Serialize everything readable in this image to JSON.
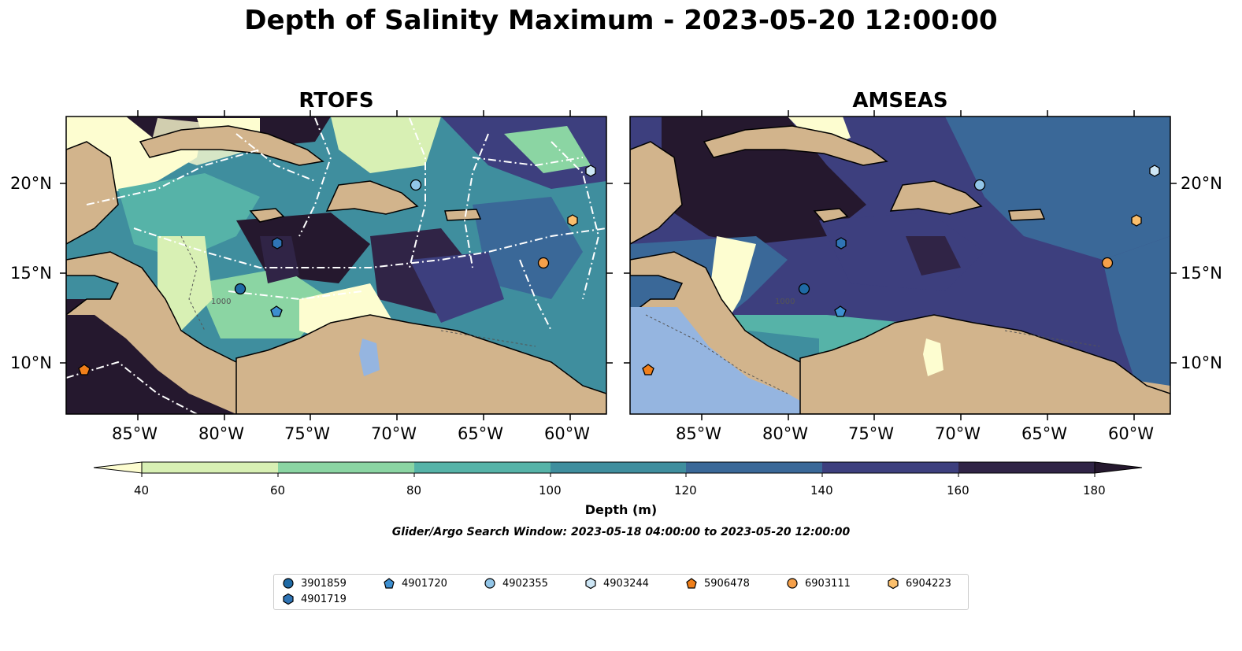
{
  "title": "Depth of Salinity Maximum - 2023-05-20 12:00:00",
  "panels": [
    {
      "title": "RTOFS"
    },
    {
      "title": "AMSEAS"
    }
  ],
  "axes": {
    "lon_ticks": [
      "85°W",
      "80°W",
      "75°W",
      "70°W",
      "65°W",
      "60°W"
    ],
    "lat_ticks": [
      "20°N",
      "15°N",
      "10°N"
    ]
  },
  "colorbar": {
    "label": "Depth (m)",
    "ticks": [
      "40",
      "60",
      "80",
      "100",
      "120",
      "140",
      "160",
      "180"
    ],
    "colors": [
      "#d8f0b4",
      "#8bd5a3",
      "#56b3a8",
      "#3f8e9e",
      "#3a6898",
      "#3d3f7e",
      "#302446"
    ],
    "extend_low": "#fdfdd0",
    "extend_high": "#25182e"
  },
  "search_window": "Glider/Argo Search Window: 2023-05-18 04:00:00 to 2023-05-20 12:00:00",
  "contour_labels": [
    "1000"
  ],
  "legend": [
    {
      "id": "3901859",
      "marker": "circle",
      "color": "#1f6aa5"
    },
    {
      "id": "4901720",
      "marker": "pentagon",
      "color": "#3d8fd0"
    },
    {
      "id": "4902355",
      "marker": "circle",
      "color": "#93c6e8"
    },
    {
      "id": "4903244",
      "marker": "hexagon",
      "color": "#cde6f5"
    },
    {
      "id": "5906478",
      "marker": "pentagon",
      "color": "#f07f1a"
    },
    {
      "id": "6903111",
      "marker": "circle",
      "color": "#f5a04a"
    },
    {
      "id": "6904223",
      "marker": "hexagon",
      "color": "#fbbf6c"
    },
    {
      "id": "4901719",
      "marker": "hexagon",
      "color": "#2f74b5"
    }
  ]
}
